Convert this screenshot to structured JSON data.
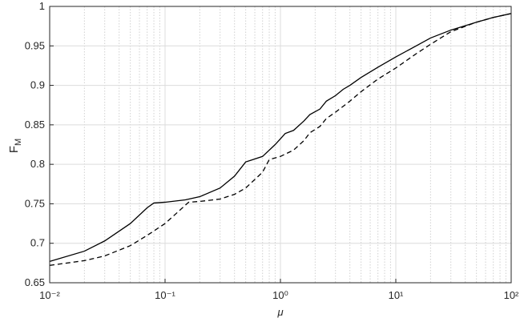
{
  "chart_data": {
    "type": "line",
    "xlabel": "μ",
    "ylabel": "F",
    "ylabel_subscript": "M",
    "xscale": "log",
    "grid": true,
    "minor_grid": true,
    "xlim": [
      0.01,
      100
    ],
    "ylim": [
      0.65,
      1
    ],
    "xticks": [
      {
        "value": 0.01,
        "label": "10⁻²"
      },
      {
        "value": 0.1,
        "label": "10⁻¹"
      },
      {
        "value": 1,
        "label": "10⁰"
      },
      {
        "value": 10,
        "label": "10¹"
      },
      {
        "value": 100,
        "label": "10²"
      }
    ],
    "yticks": [
      0.65,
      0.7,
      0.75,
      0.8,
      0.85,
      0.9,
      0.95,
      1
    ],
    "series": [
      {
        "color": "#000000",
        "dash": "solid",
        "x": [
          0.01,
          0.02,
          0.03,
          0.05,
          0.07,
          0.08,
          0.1,
          0.15,
          0.2,
          0.3,
          0.4,
          0.5,
          0.55,
          0.7,
          0.9,
          1.1,
          1.3,
          1.6,
          1.8,
          2.2,
          2.5,
          3,
          3.5,
          4,
          5,
          7,
          10,
          15,
          20,
          30,
          50,
          70,
          100
        ],
        "values": [
          0.677,
          0.69,
          0.703,
          0.725,
          0.745,
          0.751,
          0.752,
          0.755,
          0.759,
          0.77,
          0.785,
          0.803,
          0.805,
          0.81,
          0.825,
          0.839,
          0.843,
          0.855,
          0.863,
          0.87,
          0.88,
          0.887,
          0.895,
          0.9,
          0.91,
          0.923,
          0.936,
          0.95,
          0.96,
          0.97,
          0.98,
          0.986,
          0.991
        ]
      },
      {
        "color": "#000000",
        "dash": "dashed",
        "x": [
          0.01,
          0.02,
          0.03,
          0.05,
          0.07,
          0.1,
          0.13,
          0.16,
          0.2,
          0.3,
          0.4,
          0.5,
          0.7,
          0.8,
          1,
          1.3,
          1.6,
          1.8,
          2.2,
          2.5,
          3,
          4,
          5,
          7,
          10,
          15,
          20,
          30,
          50,
          70,
          100
        ],
        "values": [
          0.672,
          0.678,
          0.684,
          0.697,
          0.71,
          0.725,
          0.74,
          0.752,
          0.753,
          0.756,
          0.762,
          0.77,
          0.79,
          0.806,
          0.81,
          0.818,
          0.83,
          0.84,
          0.848,
          0.858,
          0.866,
          0.88,
          0.892,
          0.908,
          0.922,
          0.94,
          0.952,
          0.968,
          0.98,
          0.986,
          0.991
        ]
      }
    ]
  }
}
